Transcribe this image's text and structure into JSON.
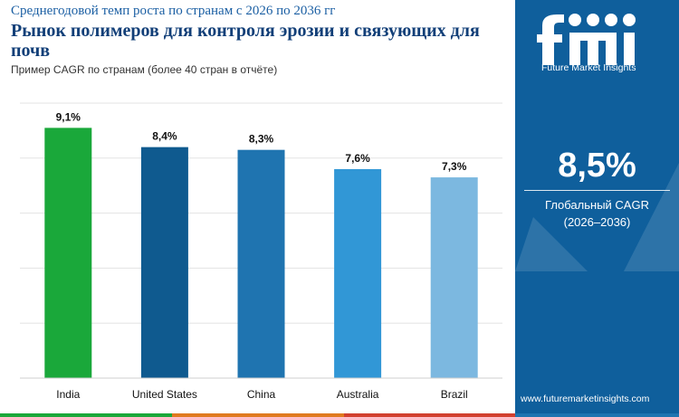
{
  "header": {
    "kicker": "Среднегодовой темп роста по странам с 2026 по 2036 гг",
    "title": "Рынок полимеров для контроля эрозии и связующих для почв",
    "subtitle": "Пример CAGR по странам (более 40 стран в отчёте)"
  },
  "chart_data": {
    "type": "bar",
    "categories": [
      "India",
      "United States",
      "China",
      "Australia",
      "Brazil"
    ],
    "values": [
      9.1,
      8.4,
      8.3,
      7.6,
      7.3
    ],
    "value_labels": [
      "9,1%",
      "8,4%",
      "8,3%",
      "7,6%",
      "7,3%"
    ],
    "bar_colors": [
      "#1aa83a",
      "#0f5a8f",
      "#1f74b0",
      "#3197d6",
      "#7cb8e0"
    ],
    "ylim": [
      0,
      10
    ],
    "grid": true,
    "title": "",
    "xlabel": "",
    "ylabel": ""
  },
  "panel": {
    "logo_letters": "fmi",
    "logo_name": "Future Market Insights",
    "global_value": "8,5%",
    "global_label": "Глобальный CAGR",
    "global_period": "(2026–2036)",
    "website": "www.futuremarketinsights.com"
  },
  "colors": {
    "panel_bg": "#0f5f9c",
    "title": "#123f78",
    "kicker": "#1b5fa3",
    "strip": [
      "#1aa83a",
      "#e07a1f",
      "#d2402f",
      "#1f74b0"
    ]
  }
}
